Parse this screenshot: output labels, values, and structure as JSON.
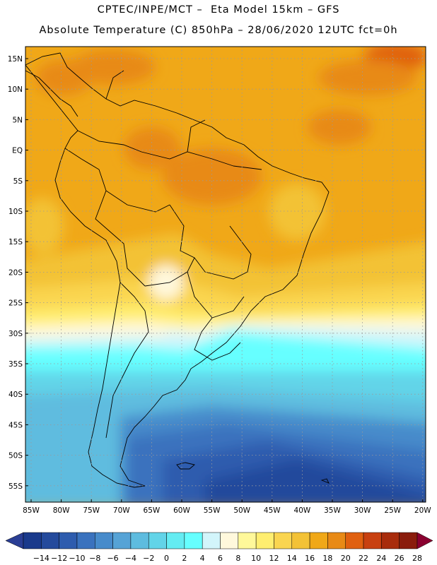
{
  "header": {
    "line1": "CPTEC/INPE/MCT –  Eta Model 15km – GFS",
    "line2": "Absolute Temperature (C) 850hPa – 28/06/2020 12UTC fct=0h"
  },
  "axes": {
    "lat_labels": [
      "15N",
      "10N",
      "5N",
      "EQ",
      "5S",
      "10S",
      "15S",
      "20S",
      "25S",
      "30S",
      "35S",
      "40S",
      "45S",
      "50S",
      "55S"
    ],
    "lon_labels": [
      "85W",
      "80W",
      "75W",
      "70W",
      "65W",
      "60W",
      "55W",
      "50W",
      "45W",
      "40W",
      "35W",
      "30W",
      "25W",
      "20W"
    ]
  },
  "colorbar": {
    "labels": [
      "-14",
      "-12",
      "-10",
      "-8",
      "-6",
      "-4",
      "-2",
      "0",
      "2",
      "4",
      "6",
      "8",
      "10",
      "12",
      "14",
      "16",
      "18",
      "20",
      "22",
      "24",
      "26",
      "28"
    ],
    "colors": [
      "#1a3a8c",
      "#244a9c",
      "#2e5cae",
      "#3a72be",
      "#478bcb",
      "#56a3d6",
      "#5ebcdf",
      "#62d4e8",
      "#64ecf2",
      "#66ffff",
      "#d2f5fb",
      "#fff8dc",
      "#fff89a",
      "#ffee70",
      "#fad550",
      "#f3c236",
      "#f0a818",
      "#e88a16",
      "#e06010",
      "#c84010",
      "#a82c0c",
      "#8a1c0c"
    ],
    "under_color": "#2a3e94",
    "over_color": "#8a0030"
  },
  "legend_colors": {
    "land_outline": "#000000",
    "grid": "#9a9a9a"
  }
}
